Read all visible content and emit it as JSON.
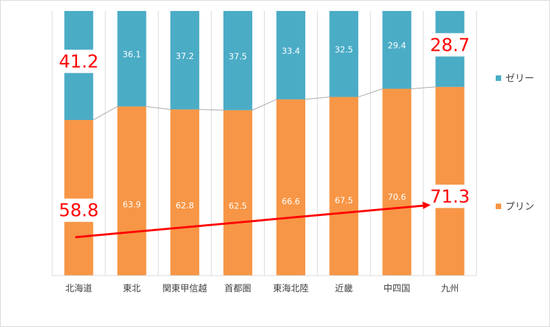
{
  "chart_data": {
    "type": "bar",
    "stacked": "percent",
    "categories": [
      "北海道",
      "東北",
      "関東甲信越",
      "首都圏",
      "東海北陸",
      "近畿",
      "中四国",
      "九州"
    ],
    "series": [
      {
        "name": "プリン",
        "color": "#f79646",
        "values": [
          58.8,
          63.9,
          62.8,
          62.5,
          66.6,
          67.5,
          70.6,
          71.3
        ]
      },
      {
        "name": "ゼリー",
        "color": "#4bacc6",
        "values": [
          41.2,
          36.1,
          37.2,
          37.5,
          33.4,
          32.5,
          29.4,
          28.7
        ]
      }
    ],
    "ylim": [
      0,
      100
    ],
    "grid": false,
    "legend_position": "right",
    "series_lines": true,
    "highlighted_labels": [
      "58.8",
      "71.3",
      "41.2",
      "28.7"
    ],
    "highlight_color": "#ff0000",
    "annotation": {
      "type": "arrow",
      "from_category": "北海道",
      "to_category": "九州",
      "color": "#ff0000"
    }
  }
}
